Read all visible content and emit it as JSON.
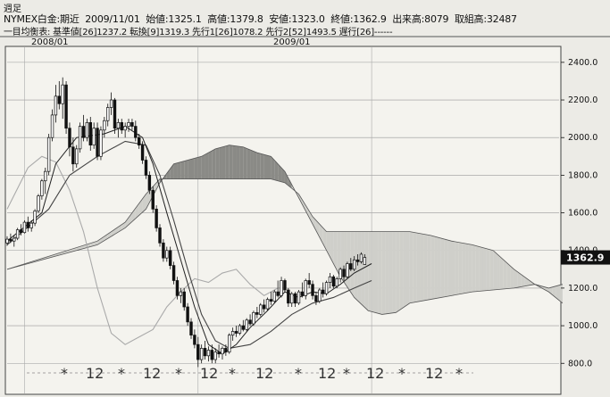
{
  "header": {
    "period_label": "週足",
    "instrument": "NYMEX白金:期近",
    "date": "2009/11/01",
    "open_label": "始値:",
    "open": "1325.1",
    "high_label": "高値:",
    "high": "1379.8",
    "low_label": "安値:",
    "low": "1323.0",
    "close_label": "終値:",
    "close": "1362.9",
    "volume_label": "出来高:",
    "volume": "8079",
    "oi_label": "取組高:",
    "oi": "32487"
  },
  "ichimoku_legend": {
    "title": "一目均衡表:",
    "kijun_label": "基準値[26]",
    "kijun": "1237.2",
    "tenkan_label": "転換[9]",
    "tenkan": "1319.3",
    "senkou1_label": "先行1[26]",
    "senkou1": "1078.2",
    "senkou2_label": "先行2[52]",
    "senkou2": "1493.5",
    "chikou_label": "遅行[26]",
    "chikou": "------"
  },
  "chart_data": {
    "type": "candlestick",
    "x_tick_labels": [
      "2008/01",
      "2009/01"
    ],
    "y_ticks": [
      800,
      1000,
      1200,
      1400,
      1600,
      1800,
      2000,
      2200,
      2400
    ],
    "y_range": [
      640,
      2480
    ],
    "last_price_label": "1362.9",
    "grid": true,
    "bottom_annotations": [
      "*",
      "12",
      "*",
      "12",
      "*",
      "12",
      "*",
      "12",
      "*",
      "12",
      "*",
      "12",
      "*",
      "12",
      "*"
    ],
    "candles": [
      [
        1440,
        1475,
        1425,
        1460
      ],
      [
        1460,
        1490,
        1440,
        1450
      ],
      [
        1450,
        1480,
        1420,
        1465
      ],
      [
        1465,
        1520,
        1455,
        1510
      ],
      [
        1510,
        1540,
        1480,
        1495
      ],
      [
        1495,
        1560,
        1490,
        1550
      ],
      [
        1550,
        1580,
        1500,
        1520
      ],
      [
        1520,
        1560,
        1500,
        1545
      ],
      [
        1545,
        1620,
        1530,
        1610
      ],
      [
        1610,
        1700,
        1600,
        1690
      ],
      [
        1690,
        1780,
        1670,
        1770
      ],
      [
        1770,
        1840,
        1700,
        1820
      ],
      [
        1820,
        2020,
        1800,
        2000
      ],
      [
        2000,
        2150,
        1980,
        2120
      ],
      [
        2120,
        2280,
        2080,
        2220
      ],
      [
        2220,
        2300,
        2150,
        2180
      ],
      [
        2180,
        2320,
        2100,
        2280
      ],
      [
        2280,
        2300,
        2020,
        2050
      ],
      [
        2050,
        2080,
        1900,
        1950
      ],
      [
        1950,
        2000,
        1820,
        1860
      ],
      [
        1860,
        1960,
        1840,
        1940
      ],
      [
        1940,
        2080,
        1920,
        2060
      ],
      [
        2060,
        2120,
        1980,
        2000
      ],
      [
        2000,
        2100,
        1980,
        2080
      ],
      [
        2080,
        2110,
        1930,
        1960
      ],
      [
        1960,
        2080,
        1940,
        2050
      ],
      [
        2050,
        2080,
        1880,
        1900
      ],
      [
        1900,
        2060,
        1880,
        2040
      ],
      [
        2040,
        2110,
        2000,
        2090
      ],
      [
        2090,
        2180,
        2060,
        2160
      ],
      [
        2160,
        2240,
        2120,
        2200
      ],
      [
        2200,
        2210,
        2020,
        2050
      ],
      [
        2050,
        2100,
        2000,
        2080
      ],
      [
        2080,
        2100,
        2020,
        2040
      ],
      [
        2040,
        2080,
        2000,
        2060
      ],
      [
        2060,
        2100,
        2030,
        2080
      ],
      [
        2080,
        2100,
        2040,
        2060
      ],
      [
        2060,
        2090,
        1980,
        2000
      ],
      [
        2000,
        2020,
        1940,
        1960
      ],
      [
        1960,
        1980,
        1860,
        1880
      ],
      [
        1880,
        1900,
        1780,
        1800
      ],
      [
        1800,
        1820,
        1700,
        1720
      ],
      [
        1720,
        1740,
        1600,
        1620
      ],
      [
        1620,
        1640,
        1500,
        1520
      ],
      [
        1520,
        1540,
        1420,
        1440
      ],
      [
        1440,
        1460,
        1340,
        1360
      ],
      [
        1360,
        1420,
        1340,
        1400
      ],
      [
        1400,
        1420,
        1300,
        1320
      ],
      [
        1320,
        1340,
        1220,
        1240
      ],
      [
        1240,
        1260,
        1140,
        1160
      ],
      [
        1160,
        1200,
        1120,
        1180
      ],
      [
        1180,
        1200,
        1080,
        1100
      ],
      [
        1100,
        1120,
        1000,
        1020
      ],
      [
        1020,
        1040,
        930,
        950
      ],
      [
        950,
        980,
        880,
        900
      ],
      [
        900,
        940,
        780,
        820
      ],
      [
        820,
        900,
        800,
        880
      ],
      [
        880,
        920,
        820,
        840
      ],
      [
        840,
        890,
        810,
        870
      ],
      [
        870,
        900,
        800,
        820
      ],
      [
        820,
        880,
        800,
        860
      ],
      [
        860,
        900,
        830,
        850
      ],
      [
        850,
        890,
        820,
        880
      ],
      [
        880,
        900,
        840,
        860
      ],
      [
        860,
        960,
        850,
        950
      ],
      [
        950,
        990,
        920,
        970
      ],
      [
        970,
        1000,
        940,
        960
      ],
      [
        960,
        1010,
        950,
        1000
      ],
      [
        1000,
        1030,
        970,
        980
      ],
      [
        980,
        1040,
        970,
        1030
      ],
      [
        1030,
        1060,
        1000,
        1010
      ],
      [
        1010,
        1080,
        1000,
        1070
      ],
      [
        1070,
        1100,
        1040,
        1060
      ],
      [
        1060,
        1120,
        1050,
        1110
      ],
      [
        1110,
        1140,
        1070,
        1090
      ],
      [
        1090,
        1150,
        1080,
        1140
      ],
      [
        1140,
        1180,
        1110,
        1130
      ],
      [
        1130,
        1190,
        1120,
        1180
      ],
      [
        1180,
        1240,
        1150,
        1160
      ],
      [
        1160,
        1260,
        1150,
        1240
      ],
      [
        1240,
        1250,
        1180,
        1190
      ],
      [
        1190,
        1200,
        1100,
        1120
      ],
      [
        1120,
        1180,
        1100,
        1170
      ],
      [
        1170,
        1180,
        1100,
        1120
      ],
      [
        1120,
        1190,
        1110,
        1180
      ],
      [
        1180,
        1230,
        1150,
        1160
      ],
      [
        1160,
        1250,
        1140,
        1240
      ],
      [
        1240,
        1280,
        1200,
        1220
      ],
      [
        1220,
        1240,
        1140,
        1160
      ],
      [
        1160,
        1180,
        1110,
        1130
      ],
      [
        1130,
        1200,
        1120,
        1190
      ],
      [
        1190,
        1230,
        1150,
        1170
      ],
      [
        1170,
        1240,
        1160,
        1230
      ],
      [
        1230,
        1280,
        1200,
        1260
      ],
      [
        1260,
        1270,
        1200,
        1210
      ],
      [
        1210,
        1260,
        1200,
        1250
      ],
      [
        1250,
        1310,
        1230,
        1300
      ],
      [
        1300,
        1320,
        1240,
        1260
      ],
      [
        1260,
        1340,
        1250,
        1330
      ],
      [
        1330,
        1360,
        1290,
        1300
      ],
      [
        1300,
        1370,
        1290,
        1350
      ],
      [
        1350,
        1380,
        1320,
        1340
      ],
      [
        1340,
        1390,
        1330,
        1380
      ],
      [
        1325,
        1380,
        1323,
        1363
      ]
    ],
    "tenkan": [
      [
        0,
        1450
      ],
      [
        10,
        1600
      ],
      [
        14,
        1860
      ],
      [
        20,
        2000
      ],
      [
        28,
        2020
      ],
      [
        34,
        2060
      ],
      [
        39,
        2000
      ],
      [
        42,
        1860
      ],
      [
        46,
        1600
      ],
      [
        50,
        1350
      ],
      [
        54,
        1100
      ],
      [
        58,
        900
      ],
      [
        62,
        850
      ],
      [
        66,
        900
      ],
      [
        70,
        990
      ],
      [
        75,
        1080
      ],
      [
        80,
        1180
      ],
      [
        84,
        1150
      ],
      [
        88,
        1180
      ],
      [
        92,
        1170
      ],
      [
        96,
        1220
      ],
      [
        100,
        1280
      ],
      [
        105,
        1330
      ]
    ],
    "kijun": [
      [
        0,
        1430
      ],
      [
        12,
        1620
      ],
      [
        18,
        1800
      ],
      [
        26,
        1900
      ],
      [
        34,
        1980
      ],
      [
        40,
        1960
      ],
      [
        44,
        1800
      ],
      [
        48,
        1560
      ],
      [
        52,
        1300
      ],
      [
        56,
        1060
      ],
      [
        60,
        920
      ],
      [
        64,
        880
      ],
      [
        70,
        900
      ],
      [
        76,
        970
      ],
      [
        82,
        1060
      ],
      [
        88,
        1120
      ],
      [
        94,
        1150
      ],
      [
        100,
        1200
      ],
      [
        105,
        1240
      ]
    ],
    "senkou_a": [
      [
        0,
        1300
      ],
      [
        26,
        1430
      ],
      [
        34,
        1520
      ],
      [
        40,
        1620
      ],
      [
        44,
        1760
      ],
      [
        48,
        1860
      ],
      [
        52,
        1880
      ],
      [
        56,
        1900
      ],
      [
        60,
        1940
      ],
      [
        64,
        1960
      ],
      [
        68,
        1950
      ],
      [
        72,
        1920
      ],
      [
        76,
        1900
      ],
      [
        80,
        1820
      ],
      [
        84,
        1680
      ],
      [
        88,
        1540
      ],
      [
        92,
        1400
      ],
      [
        96,
        1260
      ],
      [
        100,
        1150
      ],
      [
        104,
        1080
      ],
      [
        108,
        1060
      ],
      [
        112,
        1070
      ],
      [
        116,
        1120
      ],
      [
        122,
        1140
      ],
      [
        128,
        1160
      ],
      [
        134,
        1180
      ],
      [
        140,
        1190
      ],
      [
        146,
        1200
      ],
      [
        152,
        1220
      ],
      [
        156,
        1180
      ],
      [
        160,
        1120
      ]
    ],
    "senkou_b": [
      [
        0,
        1300
      ],
      [
        26,
        1450
      ],
      [
        34,
        1550
      ],
      [
        40,
        1700
      ],
      [
        44,
        1780
      ],
      [
        48,
        1780
      ],
      [
        52,
        1780
      ],
      [
        56,
        1780
      ],
      [
        60,
        1780
      ],
      [
        64,
        1780
      ],
      [
        68,
        1780
      ],
      [
        72,
        1780
      ],
      [
        76,
        1780
      ],
      [
        80,
        1760
      ],
      [
        84,
        1700
      ],
      [
        88,
        1580
      ],
      [
        92,
        1500
      ],
      [
        96,
        1500
      ],
      [
        100,
        1500
      ],
      [
        104,
        1500
      ],
      [
        108,
        1500
      ],
      [
        112,
        1500
      ],
      [
        116,
        1500
      ],
      [
        122,
        1480
      ],
      [
        128,
        1450
      ],
      [
        134,
        1430
      ],
      [
        140,
        1400
      ],
      [
        146,
        1300
      ],
      [
        152,
        1220
      ],
      [
        156,
        1200
      ],
      [
        160,
        1220
      ]
    ],
    "chikou": [
      [
        0,
        1620
      ],
      [
        6,
        1840
      ],
      [
        10,
        1900
      ],
      [
        14,
        1870
      ],
      [
        18,
        1720
      ],
      [
        22,
        1500
      ],
      [
        26,
        1200
      ],
      [
        30,
        960
      ],
      [
        34,
        900
      ],
      [
        38,
        940
      ],
      [
        42,
        980
      ],
      [
        46,
        1100
      ],
      [
        50,
        1180
      ],
      [
        54,
        1250
      ],
      [
        58,
        1230
      ],
      [
        62,
        1280
      ],
      [
        66,
        1300
      ],
      [
        70,
        1220
      ],
      [
        74,
        1160
      ],
      [
        78,
        1200
      ]
    ]
  }
}
